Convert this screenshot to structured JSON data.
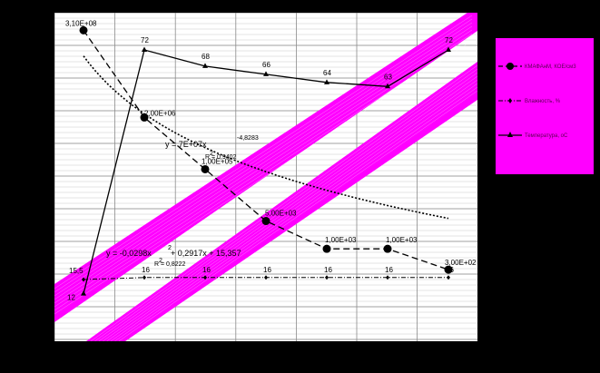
{
  "chart_data": {
    "type": "line",
    "background_color": "#000000",
    "plot_color": "#ffffff",
    "band_color": "#ff00ff",
    "legend_color": "#ff00ff",
    "grid": true,
    "legend_position": "right",
    "x": [
      1,
      2,
      3,
      4,
      5,
      6,
      7
    ],
    "series": [
      {
        "key": "microbes",
        "name": "КМАФАнМ, КОЕ/см3",
        "marker": "circle",
        "style": "dash",
        "values": [
          310000000,
          2000000,
          100000,
          5000,
          1000,
          1000,
          300
        ],
        "labels": [
          "3,10E+08",
          "2,00E+06",
          "1,00E+05",
          "5,00E+03",
          "1,00E+03",
          "1,00E+03",
          "3,00E+02"
        ]
      },
      {
        "key": "moisture",
        "name": "Влажность, %",
        "marker": "diamond",
        "style": "dashdot",
        "values": [
          15.5,
          16,
          16,
          16,
          16,
          16,
          16
        ],
        "labels": [
          "15,5",
          "16",
          "16",
          "16",
          "16",
          "16",
          "16"
        ]
      },
      {
        "key": "temperature",
        "name": "Температура, оС",
        "marker": "triangle",
        "style": "solid",
        "values": [
          12,
          72,
          68,
          66,
          64,
          63,
          72
        ],
        "labels": [
          "12",
          "72",
          "68",
          "66",
          "64",
          "63",
          "72"
        ]
      }
    ],
    "trendlines": [
      {
        "series": "microbes",
        "kind": "power",
        "equation_prefix": "y = 7E+07x",
        "equation_exponent": "-4,8283",
        "r2_prefix": "R",
        "r2_value": " = 0,9402",
        "coef": 70000000,
        "exp": -4.8283
      },
      {
        "series": "moisture",
        "kind": "polynomial",
        "equation_part1": "y = -0,0298x",
        "equation_part2": " + 0,2917x + 15,357",
        "r2_prefix": "R",
        "r2_value": " = 0,8222"
      }
    ]
  }
}
